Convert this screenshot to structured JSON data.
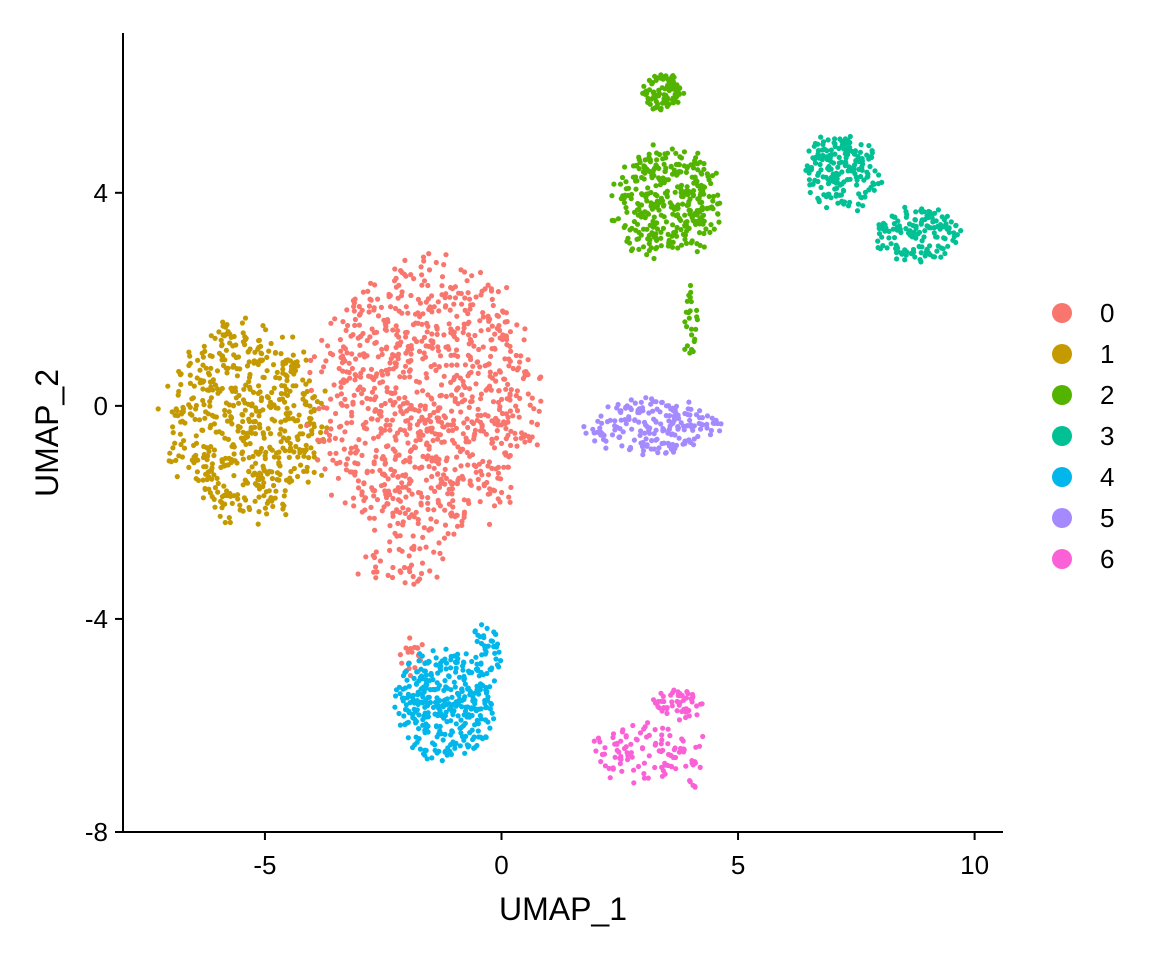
{
  "chart_data": {
    "type": "scatter",
    "title": "",
    "xlabel": "UMAP_1",
    "ylabel": "UMAP_2",
    "xlim": [
      -8,
      10.6
    ],
    "ylim": [
      -8,
      7
    ],
    "xticks": [
      -5,
      0,
      5,
      10
    ],
    "xtick_labels": [
      "-5",
      "0",
      "5",
      "10"
    ],
    "yticks": [
      -8,
      -4,
      0,
      4
    ],
    "ytick_labels": [
      "-8",
      "-4",
      "0",
      "4"
    ],
    "grid": false,
    "legend_position": "right",
    "legend": [
      {
        "label": "0",
        "color": "#F8766D"
      },
      {
        "label": "1",
        "color": "#C49A00"
      },
      {
        "label": "2",
        "color": "#53B400"
      },
      {
        "label": "3",
        "color": "#00C094"
      },
      {
        "label": "4",
        "color": "#00B6EB"
      },
      {
        "label": "5",
        "color": "#A58AFF"
      },
      {
        "label": "6",
        "color": "#FB61D7"
      }
    ],
    "clusters": [
      {
        "id": 1,
        "blobs": [
          {
            "center": [
              -5.4,
              -0.3
            ],
            "radius": [
              1.65,
              1.8
            ],
            "n": 600
          }
        ]
      },
      {
        "id": 0,
        "blobs": [
          {
            "center": [
              -1.6,
              0.1
            ],
            "radius": [
              2.3,
              2.5
            ],
            "n": 1000
          },
          {
            "center": [
              -2.1,
              -3.0
            ],
            "radius": [
              0.9,
              0.4
            ],
            "n": 40
          },
          {
            "center": [
              -1.9,
              -4.7
            ],
            "radius": [
              0.3,
              0.4
            ],
            "n": 20
          }
        ]
      },
      {
        "id": 2,
        "blobs": [
          {
            "center": [
              3.4,
              5.9
            ],
            "radius": [
              0.45,
              0.35
            ],
            "n": 90
          },
          {
            "center": [
              3.5,
              3.8
            ],
            "radius": [
              1.1,
              1.0
            ],
            "n": 350
          },
          {
            "center": [
              4.0,
              1.5
            ],
            "radius": [
              0.15,
              0.7
            ],
            "n": 25
          }
        ]
      },
      {
        "id": 3,
        "blobs": [
          {
            "center": [
              7.2,
              4.4
            ],
            "radius": [
              0.8,
              0.7
            ],
            "n": 200
          },
          {
            "center": [
              8.8,
              3.2
            ],
            "radius": [
              0.9,
              0.5
            ],
            "n": 150
          }
        ]
      },
      {
        "id": 4,
        "blobs": [
          {
            "center": [
              -1.2,
              -5.6
            ],
            "radius": [
              1.0,
              1.0
            ],
            "n": 350
          },
          {
            "center": [
              -0.3,
              -4.6
            ],
            "radius": [
              0.3,
              0.6
            ],
            "n": 40
          }
        ]
      },
      {
        "id": 5,
        "blobs": [
          {
            "center": [
              3.2,
              -0.4
            ],
            "radius": [
              1.4,
              0.5
            ],
            "n": 200
          }
        ]
      },
      {
        "id": 6,
        "blobs": [
          {
            "center": [
              2.9,
              -6.5
            ],
            "radius": [
              0.9,
              0.6
            ],
            "n": 90
          },
          {
            "center": [
              3.7,
              -5.6
            ],
            "radius": [
              0.5,
              0.3
            ],
            "n": 50
          },
          {
            "center": [
              4.0,
              -6.6
            ],
            "radius": [
              0.3,
              0.6
            ],
            "n": 20
          }
        ]
      }
    ]
  }
}
